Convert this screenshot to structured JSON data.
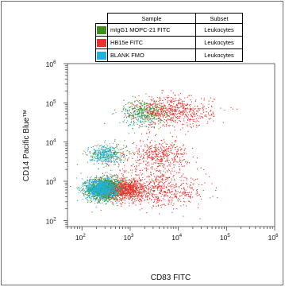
{
  "legend": {
    "headers": [
      "Sample",
      "Subset"
    ],
    "rows": [
      {
        "sample": "mIgG1 MOPC-21 FITC",
        "subset": "Leukocytes",
        "color": "#3f8f1e"
      },
      {
        "sample": "HB15e FITC",
        "subset": "Leukocytes",
        "color": "#e8332b"
      },
      {
        "sample": "BLANK FMO",
        "subset": "Leukocytes",
        "color": "#1fb3d9"
      }
    ]
  },
  "chart_data": {
    "type": "scatter",
    "xlabel": "CD83 FITC",
    "ylabel": "CD14 Pacific Blue™",
    "xscale": "log",
    "yscale": "log",
    "xlim": [
      50,
      1000000
    ],
    "ylim": [
      70,
      1000000
    ],
    "x_ticks": [
      {
        "base": "10",
        "exp": "2"
      },
      {
        "base": "10",
        "exp": "3"
      },
      {
        "base": "10",
        "exp": "4"
      },
      {
        "base": "10",
        "exp": "5"
      },
      {
        "base": "10",
        "exp": "6"
      }
    ],
    "y_ticks": [
      {
        "base": "10",
        "exp": "2"
      },
      {
        "base": "10",
        "exp": "3"
      },
      {
        "base": "10",
        "exp": "4"
      },
      {
        "base": "10",
        "exp": "5"
      },
      {
        "base": "10",
        "exp": "6"
      }
    ],
    "series": [
      {
        "name": "mIgG1 MOPC-21 FITC",
        "color": "#3f8f1e",
        "populations": [
          {
            "center": [
              300,
              650
            ],
            "spread": [
              0.18,
              0.14
            ],
            "count": 1400
          },
          {
            "center": [
              350,
              5000
            ],
            "spread": [
              0.22,
              0.14
            ],
            "count": 180
          },
          {
            "center": [
              2000,
              60000
            ],
            "spread": [
              0.22,
              0.16
            ],
            "count": 320
          }
        ]
      },
      {
        "name": "HB15e FITC",
        "color": "#e8332b",
        "populations": [
          {
            "center": [
              900,
              620
            ],
            "spread": [
              0.22,
              0.14
            ],
            "count": 750
          },
          {
            "center": [
              5000,
              550
            ],
            "spread": [
              0.45,
              0.2
            ],
            "count": 450
          },
          {
            "center": [
              4000,
              5000
            ],
            "spread": [
              0.3,
              0.18
            ],
            "count": 380
          },
          {
            "center": [
              8000,
              60000
            ],
            "spread": [
              0.4,
              0.2
            ],
            "count": 650
          },
          {
            "center": [
              2000,
              2000
            ],
            "spread": [
              0.5,
              0.3
            ],
            "count": 200
          }
        ]
      },
      {
        "name": "BLANK FMO",
        "color": "#1fb3d9",
        "populations": [
          {
            "center": [
              250,
              650
            ],
            "spread": [
              0.16,
              0.13
            ],
            "count": 900
          },
          {
            "center": [
              280,
              5000
            ],
            "spread": [
              0.16,
              0.12
            ],
            "count": 260
          },
          {
            "center": [
              1500,
              45000
            ],
            "spread": [
              0.2,
              0.15
            ],
            "count": 90
          }
        ]
      }
    ]
  }
}
